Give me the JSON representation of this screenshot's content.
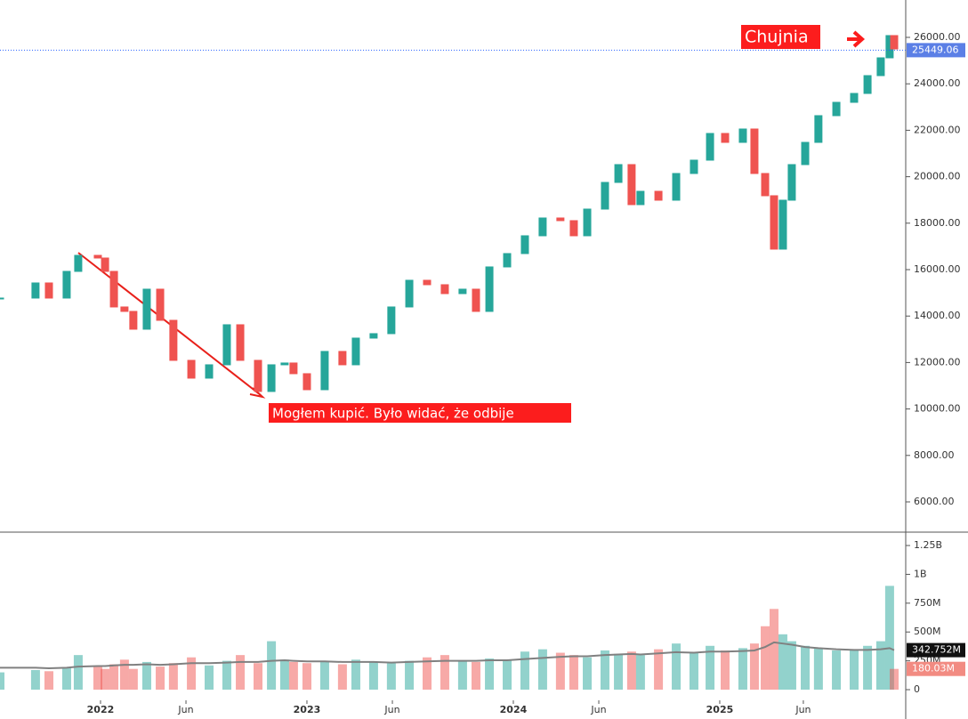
{
  "chart_data": {
    "type": "candlestick",
    "x": [
      2021.513,
      2021.685,
      2021.75,
      2021.836,
      2021.892,
      2021.987,
      2022.022,
      2022.065,
      2022.116,
      2022.159,
      2022.224,
      2022.289,
      2022.353,
      2022.44,
      2022.526,
      2022.612,
      2022.677,
      2022.763,
      2022.828,
      2022.892,
      2022.935,
      2023.0,
      2023.086,
      2023.172,
      2023.237,
      2023.323,
      2023.409,
      2023.496,
      2023.582,
      2023.668,
      2023.754,
      2023.819,
      2023.884,
      2023.97,
      2024.056,
      2024.142,
      2024.228,
      2024.293,
      2024.358,
      2024.444,
      2024.509,
      2024.573,
      2024.616,
      2024.703,
      2024.789,
      2024.875,
      2024.953,
      2025.026,
      2025.112,
      2025.168,
      2025.22,
      2025.263,
      2025.306,
      2025.349,
      2025.414,
      2025.478,
      2025.565,
      2025.651,
      2025.716,
      2025.78,
      2025.823,
      2025.845
    ],
    "values": [
      14775,
      15426,
      14775,
      15924,
      16614,
      16499,
      15924,
      14392,
      14201,
      13434,
      15158,
      13817,
      12093,
      11327,
      11902,
      13626,
      12093,
      10753,
      11902,
      11979,
      11519,
      10829,
      12477,
      11902,
      13051,
      13243,
      14392,
      15541,
      15350,
      14967,
      15158,
      14201,
      16116,
      16691,
      17457,
      18223,
      18108,
      17457,
      18606,
      19755,
      20522,
      18798,
      19372,
      18989,
      20139,
      20713,
      21863,
      21479,
      22054,
      20139,
      19181,
      16882,
      18989,
      20522,
      21479,
      22629,
      23203,
      23586,
      24353,
      25119,
      26077,
      25502
    ],
    "up_color": "#26a69a",
    "down_color": "#ef5350",
    "xlim": [
      2021.513,
      2025.901
    ],
    "xticks": [
      2022,
      {
        "value": 2022.414,
        "label": "Jun"
      },
      2023,
      {
        "value": 2023.414,
        "label": "Jun"
      },
      2024,
      {
        "value": 2024.414,
        "label": "Jun"
      },
      2025,
      {
        "value": 2025.405,
        "label": "Jun"
      }
    ],
    "ylim": [
      4697,
      27609
    ],
    "yticks": [
      {
        "value": 6000,
        "label": "6000.00"
      },
      {
        "value": 8000,
        "label": "8000.00"
      },
      {
        "value": 10000,
        "label": "10000.00"
      },
      {
        "value": 12000,
        "label": "12000.00"
      },
      {
        "value": 14000,
        "label": "14000.00"
      },
      {
        "value": 16000,
        "label": "16000.00"
      },
      {
        "value": 18000,
        "label": "18000.00"
      },
      {
        "value": 20000,
        "label": "20000.00"
      },
      {
        "value": 22000,
        "label": "22000.00"
      },
      {
        "value": 24000,
        "label": "24000.00"
      },
      {
        "value": 26000,
        "label": "26000.00"
      }
    ],
    "last_price": 25449.06,
    "annotations": [
      "Chujnia",
      "Mogłem kupić. Było widać, że odbije"
    ],
    "volume": {
      "values": [
        150000000,
        170000000,
        160000000,
        190000000,
        300000000,
        200000000,
        180000000,
        220000000,
        260000000,
        180000000,
        240000000,
        200000000,
        230000000,
        280000000,
        210000000,
        250000000,
        300000000,
        230000000,
        420000000,
        260000000,
        240000000,
        230000000,
        250000000,
        220000000,
        260000000,
        240000000,
        230000000,
        250000000,
        280000000,
        300000000,
        250000000,
        240000000,
        270000000,
        260000000,
        330000000,
        350000000,
        320000000,
        300000000,
        280000000,
        340000000,
        310000000,
        330000000,
        300000000,
        350000000,
        400000000,
        320000000,
        380000000,
        340000000,
        360000000,
        400000000,
        550000000,
        700000000,
        480000000,
        420000000,
        380000000,
        360000000,
        340000000,
        350000000,
        380000000,
        420000000,
        900000000,
        180030000
      ],
      "ma": [
        190000000,
        190000000,
        185000000,
        190000000,
        200000000,
        205000000,
        205000000,
        210000000,
        215000000,
        215000000,
        220000000,
        215000000,
        220000000,
        230000000,
        230000000,
        235000000,
        240000000,
        240000000,
        250000000,
        255000000,
        250000000,
        245000000,
        245000000,
        240000000,
        240000000,
        240000000,
        235000000,
        240000000,
        245000000,
        250000000,
        250000000,
        250000000,
        255000000,
        255000000,
        265000000,
        275000000,
        285000000,
        290000000,
        290000000,
        300000000,
        305000000,
        310000000,
        305000000,
        315000000,
        325000000,
        320000000,
        330000000,
        330000000,
        335000000,
        340000000,
        370000000,
        410000000,
        400000000,
        390000000,
        370000000,
        360000000,
        350000000,
        345000000,
        345000000,
        350000000,
        360000000,
        342752000
      ],
      "ma_color": "#808080",
      "ylim": [
        -77000000,
        1366000000
      ],
      "yticks": [
        0,
        {
          "value": 250000000,
          "label": "250M"
        },
        {
          "value": 500000000,
          "label": "500M"
        },
        {
          "value": 750000000,
          "label": "750M"
        },
        {
          "value": 1000000000,
          "label": "1B"
        },
        {
          "value": 1250000000,
          "label": "1.25B"
        }
      ],
      "ma_last": {
        "value": 342752000,
        "label": "342.752M"
      },
      "last": {
        "value": 180030000,
        "label": "180.03M"
      }
    }
  }
}
